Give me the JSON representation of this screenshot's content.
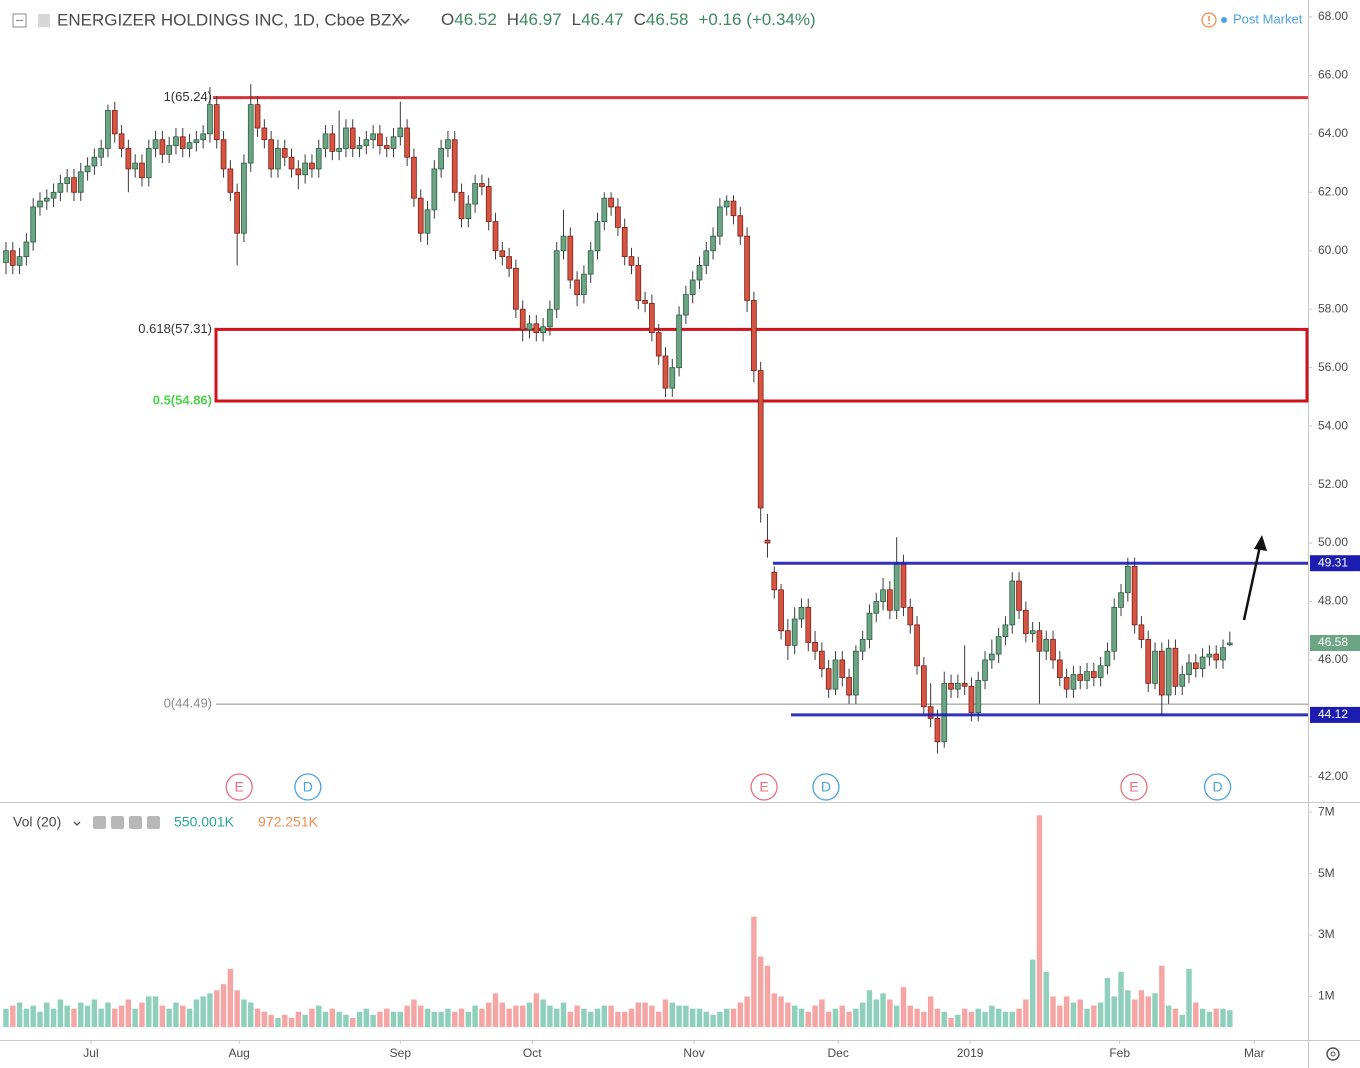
{
  "chart_data": [
    {
      "type": "candlestick",
      "title": "ENERGIZER HOLDINGS INC, 1D, Cboe BZX",
      "ohlc_letters": [
        "O",
        "H",
        "L",
        "C"
      ],
      "change": "+0.16 (+0.34%)",
      "status": "Post Market",
      "up_color": "#6ba583",
      "down_color": "#d75442",
      "open": [
        59.6,
        60.0,
        59.5,
        59.8,
        60.3,
        61.5,
        61.7,
        61.8,
        62.0,
        62.3,
        62.5,
        62.0,
        62.7,
        62.9,
        63.2,
        63.5,
        64.8,
        64.0,
        63.5,
        62.8,
        63.0,
        62.5,
        63.5,
        63.8,
        63.3,
        63.6,
        63.9,
        63.5,
        63.7,
        63.8,
        64.0,
        65.0,
        63.8,
        62.8,
        62.0,
        60.6,
        63.0,
        65.0,
        64.2,
        63.8,
        62.8,
        63.5,
        63.2,
        62.8,
        62.6,
        63.0,
        62.8,
        63.5,
        64.0,
        63.4,
        63.5,
        64.2,
        63.5,
        63.6,
        63.8,
        64.0,
        63.6,
        63.5,
        63.9,
        64.2,
        63.2,
        61.8,
        60.6,
        61.4,
        62.8,
        63.5,
        63.8,
        62.0,
        61.1,
        61.6,
        62.3,
        62.2,
        61.0,
        60.0,
        59.8,
        59.4,
        58.0,
        57.3,
        57.5,
        57.2,
        57.4,
        58.0,
        60.0,
        60.5,
        59.0,
        58.5,
        59.2,
        60.0,
        61.0,
        61.8,
        61.5,
        60.8,
        59.8,
        59.5,
        58.3,
        58.2,
        57.2,
        56.4,
        55.3,
        56.0,
        57.8,
        58.5,
        59.0,
        59.5,
        60.0,
        60.5,
        61.5,
        61.7,
        61.2,
        60.5,
        58.3,
        55.9,
        50.1,
        49.0,
        48.4,
        47.0,
        46.5,
        47.4,
        47.8,
        46.6,
        46.3,
        45.7,
        45.0,
        46.0,
        45.4,
        44.8,
        46.3,
        46.7,
        47.6,
        48.0,
        48.4,
        47.7,
        49.3,
        47.8,
        47.2,
        45.8,
        44.4,
        44.0,
        43.2,
        45.2,
        45.0,
        45.2,
        45.1,
        44.2,
        45.3,
        46.0,
        46.2,
        46.8,
        47.2,
        48.7,
        47.7,
        46.9,
        47.0,
        46.3,
        46.7,
        46.0,
        45.4,
        45.0,
        45.5,
        45.3,
        45.6,
        45.4,
        45.8,
        46.3,
        47.8,
        48.3,
        49.2,
        47.2,
        46.7,
        45.2,
        46.3,
        44.8,
        46.4,
        45.1,
        45.5,
        45.9,
        45.7,
        46.1,
        46.2,
        46.0,
        46.52
      ],
      "high": [
        60.3,
        60.3,
        60.1,
        60.6,
        61.8,
        62.0,
        62.1,
        62.3,
        62.6,
        62.8,
        62.8,
        63.0,
        63.2,
        63.5,
        63.8,
        65.0,
        65.1,
        64.3,
        63.8,
        63.3,
        63.3,
        63.8,
        64.1,
        64.1,
        63.9,
        64.2,
        64.2,
        64.0,
        64.1,
        64.3,
        65.6,
        65.3,
        64.1,
        63.1,
        62.3,
        63.3,
        65.7,
        65.3,
        64.5,
        64.1,
        63.8,
        63.8,
        63.5,
        63.1,
        63.3,
        63.3,
        63.8,
        64.3,
        64.3,
        64.8,
        64.5,
        64.5,
        63.9,
        64.1,
        64.3,
        64.3,
        63.9,
        64.2,
        65.1,
        64.5,
        63.5,
        62.1,
        61.7,
        63.1,
        63.8,
        64.1,
        64.1,
        62.3,
        61.9,
        62.6,
        62.6,
        62.5,
        61.3,
        60.3,
        60.1,
        59.7,
        58.3,
        57.8,
        57.8,
        57.7,
        58.3,
        60.3,
        61.4,
        60.8,
        59.3,
        59.5,
        60.3,
        61.3,
        62.0,
        62.0,
        61.8,
        61.1,
        60.1,
        59.8,
        58.6,
        58.5,
        57.5,
        56.7,
        56.3,
        58.1,
        58.8,
        59.3,
        59.8,
        60.3,
        60.8,
        61.8,
        61.9,
        61.9,
        61.5,
        60.8,
        58.6,
        56.2,
        51.0,
        49.2,
        48.6,
        47.4,
        47.8,
        48.1,
        48.1,
        47.0,
        46.6,
        46.0,
        46.3,
        46.3,
        45.7,
        46.5,
        47.0,
        47.9,
        48.3,
        48.8,
        48.7,
        50.2,
        49.6,
        48.1,
        47.5,
        46.1,
        45.2,
        44.3,
        45.6,
        45.5,
        45.5,
        46.5,
        45.4,
        45.6,
        46.3,
        46.7,
        47.1,
        47.5,
        49.0,
        49.0,
        48.0,
        47.3,
        47.3,
        47.0,
        47.0,
        46.3,
        45.7,
        45.8,
        45.8,
        45.9,
        45.9,
        46.1,
        46.6,
        48.1,
        48.6,
        49.5,
        49.5,
        47.5,
        47.0,
        46.6,
        46.6,
        46.7,
        46.7,
        45.8,
        46.2,
        46.2,
        46.4,
        46.5,
        46.5,
        46.7,
        46.97
      ],
      "low": [
        59.2,
        59.2,
        59.2,
        59.5,
        60.0,
        61.2,
        61.4,
        61.5,
        61.7,
        62.0,
        61.7,
        61.7,
        62.4,
        62.6,
        62.9,
        63.2,
        63.7,
        63.2,
        62.0,
        62.5,
        62.2,
        62.2,
        63.2,
        63.0,
        63.0,
        63.3,
        63.2,
        63.2,
        63.4,
        63.5,
        63.7,
        63.5,
        62.5,
        61.7,
        59.5,
        60.3,
        62.7,
        63.9,
        63.5,
        62.5,
        62.5,
        62.9,
        62.5,
        62.1,
        62.3,
        62.5,
        62.5,
        63.2,
        63.1,
        63.1,
        63.2,
        63.2,
        63.2,
        63.3,
        63.5,
        63.3,
        63.2,
        63.2,
        63.6,
        62.9,
        61.5,
        60.3,
        60.2,
        61.1,
        62.5,
        63.2,
        61.7,
        60.8,
        60.8,
        61.3,
        61.9,
        60.7,
        59.7,
        59.5,
        59.1,
        57.7,
        56.9,
        57.0,
        56.9,
        56.9,
        57.1,
        57.7,
        59.7,
        58.7,
        58.1,
        58.2,
        58.9,
        59.7,
        60.7,
        61.2,
        60.5,
        59.5,
        59.2,
        58.0,
        57.9,
        56.9,
        56.1,
        55.0,
        55.0,
        55.7,
        57.5,
        58.2,
        58.7,
        59.2,
        59.7,
        60.2,
        61.2,
        60.9,
        60.2,
        57.9,
        55.5,
        50.7,
        49.5,
        48.1,
        46.7,
        46.0,
        46.2,
        47.1,
        46.3,
        46.0,
        45.4,
        44.7,
        44.8,
        45.1,
        44.5,
        44.5,
        46.0,
        46.4,
        47.3,
        47.7,
        47.4,
        47.4,
        47.5,
        46.9,
        45.5,
        44.1,
        43.7,
        42.8,
        43.0,
        44.7,
        44.7,
        44.8,
        43.9,
        43.9,
        45.0,
        45.7,
        45.9,
        46.5,
        46.9,
        47.4,
        46.6,
        46.6,
        44.5,
        46.0,
        45.7,
        45.1,
        44.7,
        44.7,
        45.0,
        45.0,
        45.1,
        45.1,
        45.5,
        46.0,
        47.5,
        48.0,
        46.9,
        46.4,
        44.9,
        45.0,
        44.1,
        44.5,
        44.8,
        44.8,
        45.2,
        45.4,
        45.4,
        45.8,
        45.7,
        45.7,
        46.47
      ],
      "close": [
        60.0,
        59.5,
        59.8,
        60.3,
        61.5,
        61.7,
        61.8,
        62.0,
        62.3,
        62.5,
        62.0,
        62.7,
        62.9,
        63.2,
        63.5,
        64.8,
        64.0,
        63.5,
        62.8,
        63.0,
        62.5,
        63.5,
        63.8,
        63.3,
        63.6,
        63.9,
        63.5,
        63.7,
        63.8,
        64.0,
        65.0,
        63.8,
        62.8,
        62.0,
        60.6,
        63.0,
        65.0,
        64.2,
        63.8,
        62.8,
        63.5,
        63.2,
        62.8,
        62.6,
        63.0,
        62.8,
        63.5,
        64.0,
        63.4,
        63.5,
        64.2,
        63.5,
        63.6,
        63.8,
        64.0,
        63.6,
        63.5,
        63.9,
        64.2,
        63.2,
        61.8,
        60.6,
        61.4,
        62.8,
        63.5,
        63.8,
        62.0,
        61.1,
        61.6,
        62.3,
        62.2,
        61.0,
        60.0,
        59.8,
        59.4,
        58.0,
        57.3,
        57.5,
        57.2,
        57.4,
        58.0,
        60.0,
        60.5,
        59.0,
        58.5,
        59.2,
        60.0,
        61.0,
        61.8,
        61.5,
        60.8,
        59.8,
        59.5,
        58.3,
        58.2,
        57.2,
        56.4,
        55.3,
        56.0,
        57.8,
        58.5,
        59.0,
        59.5,
        60.0,
        60.5,
        61.5,
        61.7,
        61.2,
        60.5,
        58.3,
        55.9,
        51.2,
        50.0,
        48.4,
        47.0,
        46.5,
        47.4,
        47.8,
        46.6,
        46.3,
        45.7,
        45.0,
        46.0,
        45.4,
        44.8,
        46.3,
        46.7,
        47.6,
        48.0,
        48.4,
        47.7,
        49.3,
        47.8,
        47.2,
        45.8,
        44.4,
        44.0,
        43.2,
        45.2,
        45.0,
        45.2,
        45.1,
        44.2,
        45.3,
        46.0,
        46.2,
        46.8,
        47.2,
        48.7,
        47.7,
        46.9,
        47.0,
        46.3,
        46.7,
        46.0,
        45.4,
        45.0,
        45.5,
        45.3,
        45.6,
        45.4,
        45.8,
        46.3,
        47.8,
        48.3,
        49.2,
        47.2,
        46.7,
        45.2,
        46.3,
        44.8,
        46.4,
        45.1,
        45.5,
        45.9,
        45.7,
        46.1,
        46.2,
        46.0,
        46.42,
        46.58
      ],
      "xlim": [
        -0.88,
        191.5
      ],
      "xticks": [
        {
          "value": 12.5,
          "label": "Jul"
        },
        {
          "value": 34.3,
          "label": "Aug"
        },
        {
          "value": 58,
          "label": "Sep"
        },
        {
          "value": 77.4,
          "label": "Oct"
        },
        {
          "value": 101.2,
          "label": "Nov"
        },
        {
          "value": 122.4,
          "label": "Dec"
        },
        {
          "value": 141.8,
          "label": "2019"
        },
        {
          "value": 163.8,
          "label": "Feb"
        },
        {
          "value": 183.6,
          "label": "Mar"
        }
      ],
      "ylim": [
        41.14,
        68.58
      ],
      "yticks": [
        {
          "value": 42,
          "label": "42.00"
        },
        {
          "value": 44,
          "label": "44.00"
        },
        {
          "value": 46,
          "label": "46.00"
        },
        {
          "value": 48,
          "label": "48.00"
        },
        {
          "value": 50,
          "label": "50.00"
        },
        {
          "value": 52,
          "label": "52.00"
        },
        {
          "value": 54,
          "label": "54.00"
        },
        {
          "value": 56,
          "label": "56.00"
        },
        {
          "value": 58,
          "label": "58.00"
        },
        {
          "value": 60,
          "label": "60.00"
        },
        {
          "value": 62,
          "label": "62.00"
        },
        {
          "value": 64,
          "label": "64.00"
        },
        {
          "value": 66,
          "label": "66.00"
        },
        {
          "value": 68,
          "label": "68.00"
        }
      ],
      "grid": false,
      "fib_levels": [
        {
          "value": 65.24,
          "label": "1(65.24)",
          "color": "#333333"
        },
        {
          "value": 57.31,
          "label": "0.618(57.31)",
          "color": "#333333"
        },
        {
          "value": 54.86,
          "label": "0.5(54.86)",
          "color": "#4cd44c"
        },
        {
          "value": 44.49,
          "label": "0(44.49)",
          "color": "#8a8a8a"
        }
      ],
      "zone_color": "#d0121b",
      "channel_lines": [
        49.31,
        44.12
      ],
      "channel_color": "#1c1cb0",
      "last_price": 46.58,
      "events": [
        {
          "x": 34.3,
          "label": "E",
          "color": "#e8707a"
        },
        {
          "x": 44.4,
          "label": "D",
          "color": "#4aa3df"
        },
        {
          "x": 111.5,
          "label": "E",
          "color": "#e8707a"
        },
        {
          "x": 120.6,
          "label": "D",
          "color": "#4aa3df"
        },
        {
          "x": 165.9,
          "label": "E",
          "color": "#e8707a"
        },
        {
          "x": 178.2,
          "label": "D",
          "color": "#4aa3df"
        }
      ]
    },
    {
      "type": "bar",
      "title": "Vol (20)",
      "legend_values": [
        {
          "label": "550.001K",
          "color": "#26a69a"
        },
        {
          "label": "972.251K",
          "color": "#f28b50"
        }
      ],
      "up_color": "#8fd0bc",
      "down_color": "#f6a5a5",
      "values": [
        0.6,
        0.7,
        0.8,
        0.6,
        0.7,
        0.5,
        0.8,
        0.6,
        0.9,
        0.7,
        0.6,
        0.8,
        0.7,
        0.9,
        0.6,
        0.8,
        0.6,
        0.7,
        0.9,
        0.6,
        0.8,
        1.0,
        1.0,
        0.7,
        0.6,
        0.8,
        0.7,
        0.6,
        0.9,
        1.0,
        1.1,
        1.2,
        1.4,
        1.9,
        1.2,
        0.9,
        0.8,
        0.6,
        0.5,
        0.4,
        0.3,
        0.4,
        0.3,
        0.5,
        0.4,
        0.6,
        0.7,
        0.5,
        0.6,
        0.5,
        0.4,
        0.3,
        0.5,
        0.6,
        0.4,
        0.5,
        0.6,
        0.5,
        0.5,
        0.7,
        0.9,
        0.7,
        0.6,
        0.5,
        0.5,
        0.6,
        0.5,
        0.6,
        0.5,
        0.7,
        0.6,
        0.8,
        1.1,
        0.8,
        0.6,
        0.7,
        0.7,
        0.8,
        1.1,
        0.9,
        0.7,
        0.6,
        0.8,
        0.5,
        0.7,
        0.6,
        0.5,
        0.6,
        0.7,
        0.7,
        0.5,
        0.5,
        0.6,
        0.8,
        0.8,
        0.7,
        0.5,
        0.9,
        0.8,
        0.7,
        0.7,
        0.6,
        0.6,
        0.5,
        0.4,
        0.5,
        0.6,
        0.6,
        0.8,
        1.0,
        3.6,
        2.3,
        2.0,
        1.1,
        1.0,
        0.8,
        0.7,
        0.6,
        0.5,
        0.7,
        0.9,
        0.5,
        0.6,
        0.7,
        0.5,
        0.6,
        0.8,
        1.2,
        0.9,
        1.1,
        0.9,
        0.7,
        1.3,
        0.7,
        0.6,
        0.5,
        1.0,
        0.6,
        0.5,
        0.3,
        0.4,
        0.6,
        0.5,
        0.6,
        0.5,
        0.7,
        0.6,
        0.5,
        0.5,
        0.6,
        0.9,
        2.2,
        6.9,
        1.8,
        1.0,
        0.7,
        1.0,
        0.8,
        0.9,
        0.6,
        0.7,
        0.8,
        1.6,
        1.0,
        1.8,
        1.2,
        0.9,
        1.2,
        1.0,
        1.1,
        2.0,
        0.7,
        0.6,
        0.4,
        1.9,
        0.8,
        0.6,
        0.5,
        0.6,
        0.6,
        0.550001
      ],
      "ylim": [
        -0.42,
        7.3
      ],
      "yticks": [
        {
          "value": 1,
          "label": "1M"
        },
        {
          "value": 3,
          "label": "3M"
        },
        {
          "value": 5,
          "label": "5M"
        },
        {
          "value": 7,
          "label": "7M"
        }
      ]
    }
  ]
}
